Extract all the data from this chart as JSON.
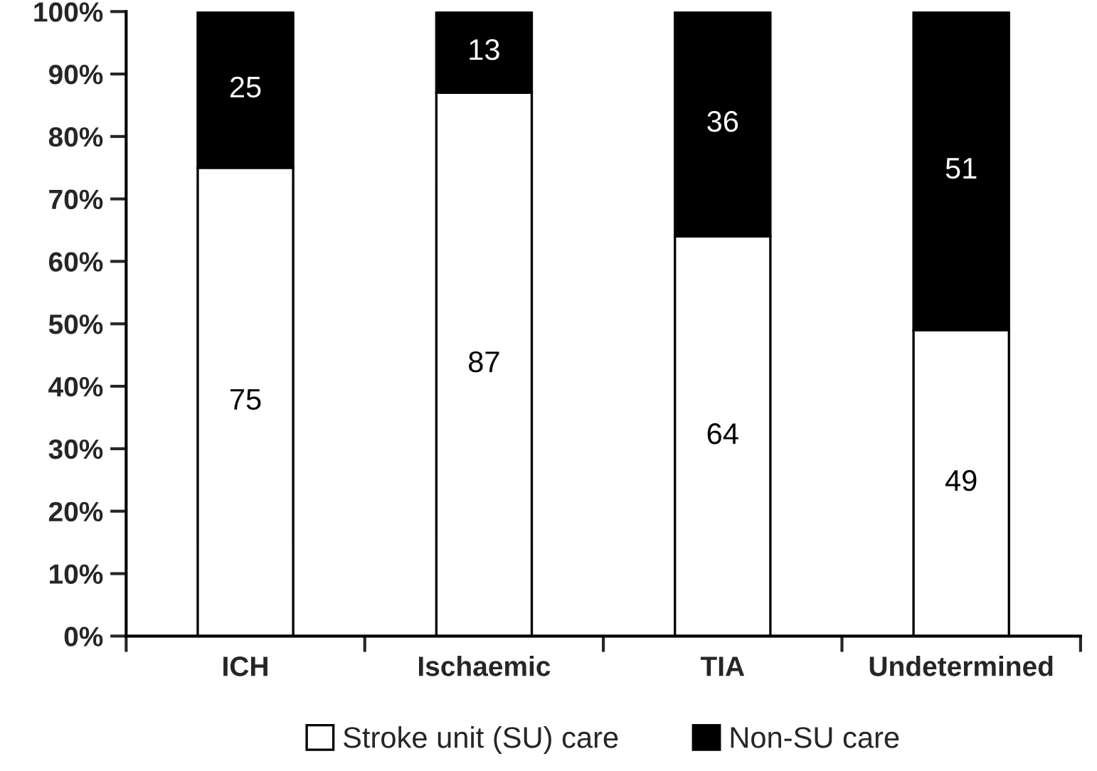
{
  "chart_data": {
    "type": "bar",
    "stacked": true,
    "categories": [
      "ICH",
      "Ischaemic",
      "TIA",
      "Undetermined"
    ],
    "series": [
      {
        "name": "Stroke unit (SU) care",
        "color": "#ffffff",
        "values": [
          75,
          87,
          64,
          49
        ]
      },
      {
        "name": "Non-SU care",
        "color": "#000000",
        "values": [
          25,
          13,
          36,
          51
        ]
      }
    ],
    "ylim": [
      0,
      100
    ],
    "yticks": [
      {
        "value": 0,
        "label": "0%"
      },
      {
        "value": 10,
        "label": "10%"
      },
      {
        "value": 20,
        "label": "20%"
      },
      {
        "value": 30,
        "label": "30%"
      },
      {
        "value": 40,
        "label": "40%"
      },
      {
        "value": 50,
        "label": "50%"
      },
      {
        "value": 60,
        "label": "60%"
      },
      {
        "value": 70,
        "label": "70%"
      },
      {
        "value": 80,
        "label": "80%"
      },
      {
        "value": 90,
        "label": "90%"
      },
      {
        "value": 100,
        "label": "100%"
      }
    ],
    "data_labels": true,
    "grid": false,
    "legend": "bottom"
  }
}
